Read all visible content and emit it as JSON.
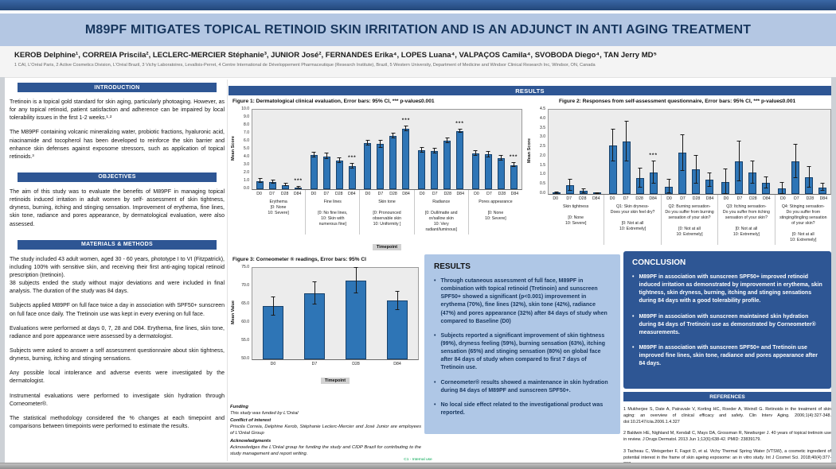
{
  "header": {
    "title": "M89PF MITIGATES TOPICAL RETINOID SKIN IRRITATION AND IS AN ADJUNCT IN ANTI AGING TREATMENT",
    "authors": "KEROB Delphine¹, CORREIA Priscila², LECLERC-MERCIER Stéphanie³, JUNIOR José², FERNANDES Erika⁴, LOPES Luana⁴, VALPAÇOS Camila⁴, SVOBODA Diego⁴, TAN Jerry MD⁵",
    "affiliations": "1 CAI, L'Oréal Paris, 2 Active Cosmetics Division, L'Oréal Brazil, 3 Vichy Laboratoires, Levallois-Perret, 4 Centre International de Développement Pharmaceutique (Research Institute), Brazil, 5 Western University, Department of Medicine and Windsor Clinical Research Inc, Windsor, ON, Canada"
  },
  "left_column": {
    "introduction": {
      "heading": "INTRODUCTION",
      "paragraphs": [
        "Tretinoin is a topical gold standard for skin aging, particularly photoaging. However, as for any topical retinoid, patient satisfaction and adherence can be impaired by local tolerability issues in the first 1-2 weeks.¹·²",
        "The M89PF containing volcanic mineralizing water, probiotic fractions, hyaluronic acid, niacinamide and tocopherol has been developed to reinforce the skin barrier and enhance  skin defenses against exposome stressors, such as application of topical retinoids.³"
      ]
    },
    "objectives": {
      "heading": "OBJECTIVES",
      "paragraphs": [
        "The aim of this study was to evaluate the benefits of M89PF in managing topical retinoids induced irritation in adult women by self- assessment of skin tightness, dryness, burning, itching and stinging sensation. Improvement of  erythema, fine lines, skin tone, radiance and pores appearance, by dermatological evaluation, were also assessed."
      ]
    },
    "materials_methods": {
      "heading": "MATERIALS & METHODS",
      "paragraphs": [
        "The study included 43 adult women, aged 30 - 60 years, phototype I to VI (Fitzpatrick), including 100% with sensitive skin, and receiving their first anti-aging topical retinoid prescription (tretinoin).\n38 subjects ended the study without major deviations and were included in final analysis. The duration of the study was 84 days.",
        "Subjects applied M89PF on full face twice a day in association with SPF50+ sunscreen on full face once daily. The Tretinoin use was kept in every evening on full face.",
        "Evaluations were performed at days 0, 7, 28 and D84. Erythema, fine lines, skin tone, radiance and pore appearance were assessed by a dermatologist.",
        "Subjects were asked to answer a self assessment questionnaire about skin tightness, dryness, burning, itching and stinging sensations.",
        "Any possible local intolerance and adverse events were investigated by the dermatologist.",
        "Instrumental evaluations were performed to investigate skin hydration through Corneometer®.",
        "The statistical methodology considered the % changes at each timepoint and comparisons between timepoints were performed to estimate the results."
      ]
    }
  },
  "results_section": {
    "heading": "RESULTS"
  },
  "chart_data": [
    {
      "type": "bar",
      "caption": "Figure 1: Dermatological clinical evaluation, Error bars: 95% CI, *** p-value≤0.001",
      "ylabel": "Mean Score",
      "xlabel": "Timepoint",
      "ylim": [
        0,
        10
      ],
      "ytick_step": 1,
      "ytick_decimals": 1,
      "timepoints": [
        "D0",
        "D7",
        "D28",
        "D84"
      ],
      "groups": [
        {
          "label": "Erythema\n[0: None\n10: Severe]",
          "values": [
            1.05,
            0.95,
            0.55,
            0.25
          ],
          "errors": [
            0.25,
            0.2,
            0.15,
            0.1
          ],
          "sig": [
            "",
            "",
            "",
            "***"
          ]
        },
        {
          "label": "Fine lines\n\n[0: No fine lines,\n10: Skin with\nnumerous fine]",
          "values": [
            4.35,
            4.15,
            3.65,
            2.95
          ],
          "errors": [
            0.3,
            0.35,
            0.3,
            0.3
          ],
          "sig": [
            "",
            "",
            "",
            "***"
          ]
        },
        {
          "label": "Skin tone\n\n[0: Pronounced\nobservable skin\n10: Uniformity ]",
          "values": [
            5.8,
            5.7,
            6.7,
            7.6
          ],
          "errors": [
            0.3,
            0.45,
            0.3,
            0.3
          ],
          "sig": [
            "",
            "",
            "",
            "***"
          ]
        },
        {
          "label": "Radiance\n\n[0: Dull/matte and\nor/sallow skin\n10: Very\nradiant/luminous]",
          "values": [
            4.9,
            4.85,
            6.15,
            7.35
          ],
          "errors": [
            0.3,
            0.3,
            0.3,
            0.2
          ],
          "sig": [
            "",
            "",
            "",
            "***"
          ]
        },
        {
          "label": "Pores appearance\n\n[0: None\n10: Severe]",
          "values": [
            4.5,
            4.4,
            3.95,
            3.05
          ],
          "errors": [
            0.3,
            0.35,
            0.3,
            0.25
          ],
          "sig": [
            "",
            "",
            "",
            "***"
          ]
        }
      ]
    },
    {
      "type": "bar",
      "caption": "Figure 2: Responses from self-assessment questionnaire, Error bars: 95% CI, *** p-value≤0.001",
      "ylabel": "Mean Score",
      "xlabel": "Timepoint",
      "ylim": [
        0,
        4.5
      ],
      "ytick_step": 0.5,
      "ytick_decimals": 1,
      "timepoints": [
        "D0",
        "D7",
        "D28",
        "D84"
      ],
      "groups": [
        {
          "label": "Skin tightness\n\n[0: None\n10: Severe]",
          "values": [
            0.03,
            0.45,
            0.15,
            0.02
          ],
          "errors": [
            0.04,
            0.3,
            0.1,
            0.03
          ],
          "sig": [
            "",
            "",
            "",
            ""
          ]
        },
        {
          "label": "Q1: Skin dryness-\nDoes your skin feel dry?\n\n[0: Not at all\n10: Extremely]",
          "values": [
            2.6,
            2.8,
            0.85,
            1.15
          ],
          "errors": [
            0.85,
            1.05,
            0.5,
            0.6
          ],
          "sig": [
            "",
            "",
            "",
            "***"
          ]
        },
        {
          "label": "Q2: Burning sensation-\nDo you suffer from burning\nsensation of your skin?\n\n[0: Not at all\n10: Extremely]",
          "values": [
            0.4,
            2.2,
            1.3,
            0.75
          ],
          "errors": [
            0.35,
            0.95,
            0.75,
            0.35
          ],
          "sig": [
            "",
            "",
            "",
            ""
          ]
        },
        {
          "label": "Q3: Itching sensation-\nDo you suffer from itching\nsensation of your skin?\n\n[0: Not at all\n10: Extremely]",
          "values": [
            0.65,
            1.75,
            1.15,
            0.6
          ],
          "errors": [
            0.65,
            1.05,
            0.6,
            0.3
          ],
          "sig": [
            "",
            "",
            "",
            ""
          ]
        },
        {
          "label": "Q4: Stinging sensation-\nDo you suffer from\nstinging/tingling sensation\nof your skin?\n\n[0: Not at all\n10: Extremely]",
          "values": [
            0.3,
            1.75,
            0.9,
            0.35
          ],
          "errors": [
            0.3,
            0.9,
            0.55,
            0.2
          ],
          "sig": [
            "",
            "",
            "",
            ""
          ]
        }
      ]
    },
    {
      "type": "bar",
      "caption": "Figure 3: Corneometer ® readings, Error bars: 95% CI",
      "ylabel": "Mean Value",
      "xlabel": "Timepoint",
      "ylim": [
        50,
        75
      ],
      "ytick_step": 5,
      "ytick_decimals": 1,
      "timepoints": [
        "D0",
        "D7",
        "D28",
        "D84"
      ],
      "groups": [
        {
          "label": "",
          "values": [
            64.5,
            68.0,
            71.5,
            66.0
          ],
          "errors": [
            2.5,
            3.0,
            3.5,
            2.5
          ],
          "sig": [
            "",
            "",
            "",
            ""
          ]
        }
      ]
    }
  ],
  "results_box": {
    "heading": "RESULTS",
    "bullets": [
      "Through cutaneous assessment of full face, M89PF in combination with topical retinoid (Tretinoin) and sunscreen SPF50+ showed a significant (p<0.001) improvement in erythema (70%), fine lines (32%), skin tone (42%), radiance (47%) and pores appearance (32%) after 84 days of study when compared to Baseline (D0)",
      "Subjects reported a significant improvement of skin tightness (99%), dryness feeling (59%), burning sensation (63%), itching sensation (65%) and stinging sensation (80%) on global face after 84 days of study when compared to first 7 days of Tretinoin use.",
      "Corneometer® results showed a maintenance in skin hydration during 84 days of M89PF and sunscreen SPF50+.",
      "No local side effect related to the investigational product was reported."
    ]
  },
  "conclusion_box": {
    "heading": "CONCLUSION",
    "bullets": [
      "M89PF in association with sunscreen SPF50+ improved retinoid induced irritation as demonstrated by improvement in erythema, skin tightness, skin dryness, burning, itching and stinging sensations during 84 days with a good tolerability profile.",
      "M89PF in association with sunscreen maintained skin hydration during 84 days of Tretinoin use as demonstrated by Corneometer® measurements.",
      "M89PF in association with sunscreen SPF50+ and Tretinoin use improved fine lines, skin tone, radiance and pores appearance after 84 days."
    ]
  },
  "references": {
    "heading": "REFERENCES",
    "items": [
      "1 Mukherjee S, Date A, Patravale V, Korting HC, Roeder A, Weindl G. Retinoids in the treatment of skin aging: an overview of clinical efficacy and safety. Clin Interv Aging. 2006;1(4):327-348. doi:10.2147/ciia.2006.1.4.327",
      "2 Baldwin HE, Nighland M, Kendall C, Mays DA, Grossman R, Newburger J. 40 years of topical tretinoin use in review. J Drugs Dermatol. 2013 Jun 1;12(6):638-42. PMID: 23839179.",
      "3 Tacheau C, Weisgerber F, Fagot D, et al. Vichy Thermal Spring Water (VTSW), a cosmetic ingredient of potential interest in the frame of skin ageing exposome: an in vitro study. Int J Cosmet Sci. 2018;40(4):377-387."
    ]
  },
  "footnotes": {
    "funding_label": "Funding",
    "funding_text": "This study was funded by L'Oréal",
    "coi_label": "Conflict of interest",
    "coi_text": "Priscila Correia, Delphine Kerob, Stéphanie Leclerc-Mercier and José Junior are employees of L'Oréal Group",
    "ack_label": "Acknowledgments",
    "ack_text": "Acknowledges the L'Oréal group for funding the study and CIDP Brazil for contributing to the study management and report writing."
  },
  "footer": {
    "classification": "C1 - Internal use"
  },
  "colors": {
    "navy_bar": "#2E5694",
    "title_band": "#B4C7E3",
    "title_text": "#17365D",
    "bar_fill": "#2E75B6",
    "bar_border": "#17416B",
    "plot_background": "#ECECEC",
    "results_box_background": "#AFC7E6",
    "classification_green": "#00A651"
  }
}
